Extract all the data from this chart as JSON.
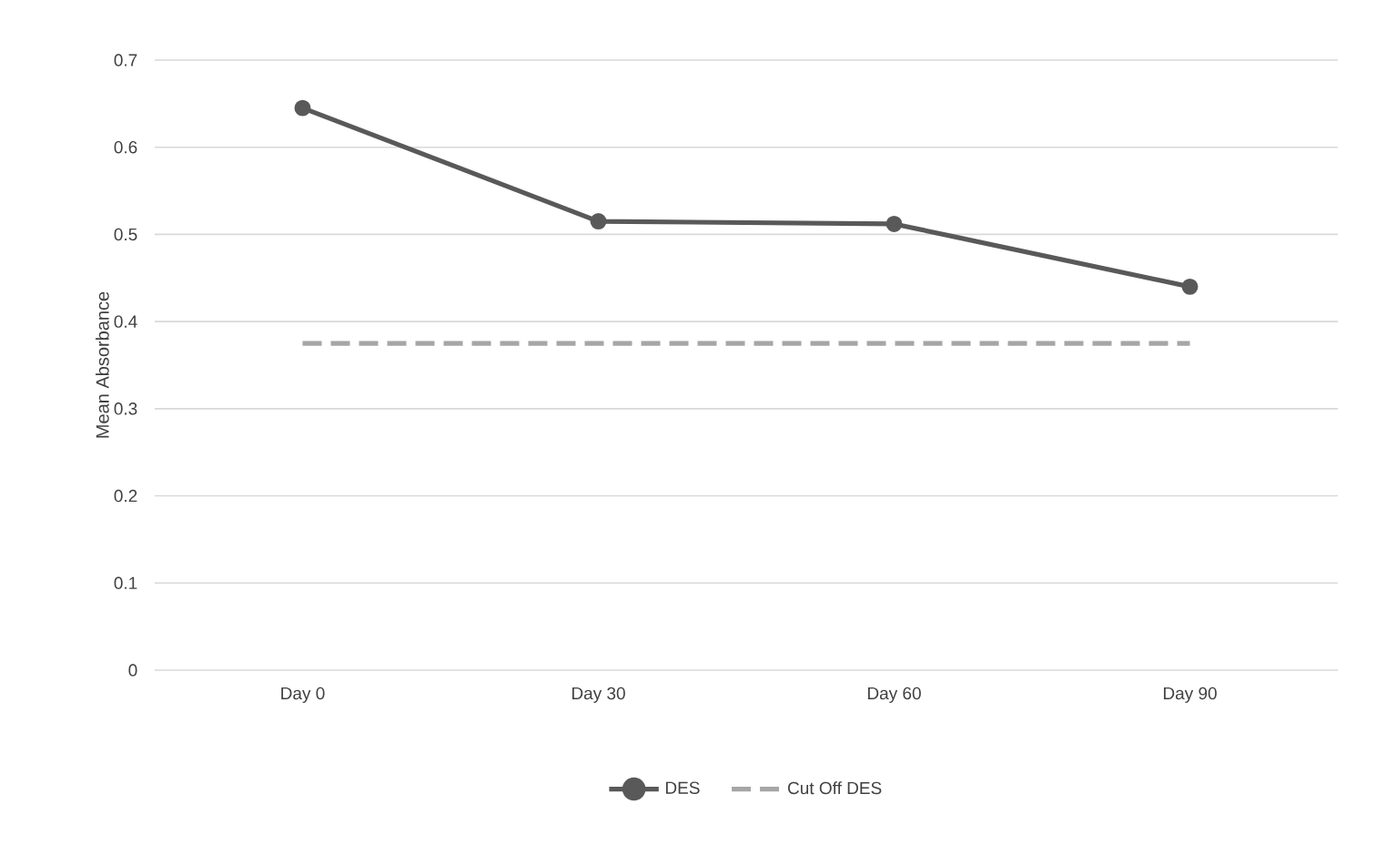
{
  "chart_data": {
    "type": "line",
    "ylabel": "Mean Absorbance",
    "categories": [
      "Day 0",
      "Day 30",
      "Day 60",
      "Day 90"
    ],
    "series": [
      {
        "name": "DES",
        "color": "#595959",
        "values": [
          0.645,
          0.515,
          0.512,
          0.44
        ],
        "marker": "circle",
        "line_style": "solid"
      },
      {
        "name": "Cut Off DES",
        "color": "#a6a6a6",
        "values": [
          0.375,
          0.375,
          0.375,
          0.375
        ],
        "marker": "none",
        "line_style": "dashed"
      }
    ],
    "ylim": [
      0,
      0.7
    ],
    "yticks": [
      0,
      0.1,
      0.2,
      0.3,
      0.4,
      0.5,
      0.6,
      0.7
    ],
    "grid": "y",
    "legend": "bottom"
  }
}
